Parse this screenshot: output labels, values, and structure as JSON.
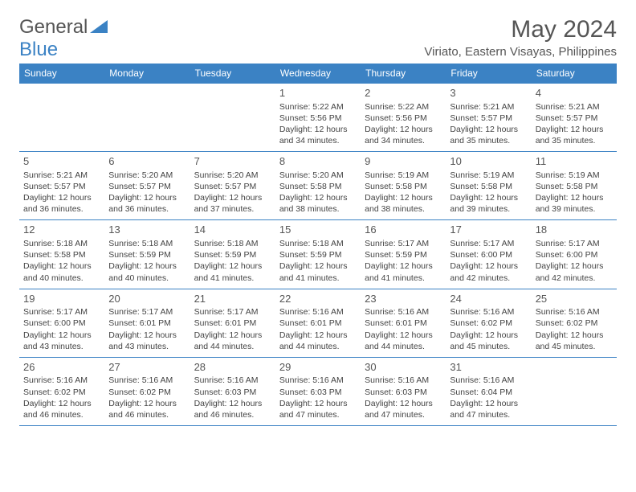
{
  "logo": {
    "part1": "General",
    "part2": "Blue"
  },
  "title": "May 2024",
  "location": "Viriato, Eastern Visayas, Philippines",
  "colors": {
    "header_bg": "#3b82c4",
    "header_text": "#ffffff",
    "body_text": "#444444",
    "border": "#3b82c4",
    "title_text": "#555555"
  },
  "day_names": [
    "Sunday",
    "Monday",
    "Tuesday",
    "Wednesday",
    "Thursday",
    "Friday",
    "Saturday"
  ],
  "weeks": [
    [
      null,
      null,
      null,
      {
        "n": "1",
        "sr": "5:22 AM",
        "ss": "5:56 PM",
        "dl": "12 hours and 34 minutes."
      },
      {
        "n": "2",
        "sr": "5:22 AM",
        "ss": "5:56 PM",
        "dl": "12 hours and 34 minutes."
      },
      {
        "n": "3",
        "sr": "5:21 AM",
        "ss": "5:57 PM",
        "dl": "12 hours and 35 minutes."
      },
      {
        "n": "4",
        "sr": "5:21 AM",
        "ss": "5:57 PM",
        "dl": "12 hours and 35 minutes."
      }
    ],
    [
      {
        "n": "5",
        "sr": "5:21 AM",
        "ss": "5:57 PM",
        "dl": "12 hours and 36 minutes."
      },
      {
        "n": "6",
        "sr": "5:20 AM",
        "ss": "5:57 PM",
        "dl": "12 hours and 36 minutes."
      },
      {
        "n": "7",
        "sr": "5:20 AM",
        "ss": "5:57 PM",
        "dl": "12 hours and 37 minutes."
      },
      {
        "n": "8",
        "sr": "5:20 AM",
        "ss": "5:58 PM",
        "dl": "12 hours and 38 minutes."
      },
      {
        "n": "9",
        "sr": "5:19 AM",
        "ss": "5:58 PM",
        "dl": "12 hours and 38 minutes."
      },
      {
        "n": "10",
        "sr": "5:19 AM",
        "ss": "5:58 PM",
        "dl": "12 hours and 39 minutes."
      },
      {
        "n": "11",
        "sr": "5:19 AM",
        "ss": "5:58 PM",
        "dl": "12 hours and 39 minutes."
      }
    ],
    [
      {
        "n": "12",
        "sr": "5:18 AM",
        "ss": "5:58 PM",
        "dl": "12 hours and 40 minutes."
      },
      {
        "n": "13",
        "sr": "5:18 AM",
        "ss": "5:59 PM",
        "dl": "12 hours and 40 minutes."
      },
      {
        "n": "14",
        "sr": "5:18 AM",
        "ss": "5:59 PM",
        "dl": "12 hours and 41 minutes."
      },
      {
        "n": "15",
        "sr": "5:18 AM",
        "ss": "5:59 PM",
        "dl": "12 hours and 41 minutes."
      },
      {
        "n": "16",
        "sr": "5:17 AM",
        "ss": "5:59 PM",
        "dl": "12 hours and 41 minutes."
      },
      {
        "n": "17",
        "sr": "5:17 AM",
        "ss": "6:00 PM",
        "dl": "12 hours and 42 minutes."
      },
      {
        "n": "18",
        "sr": "5:17 AM",
        "ss": "6:00 PM",
        "dl": "12 hours and 42 minutes."
      }
    ],
    [
      {
        "n": "19",
        "sr": "5:17 AM",
        "ss": "6:00 PM",
        "dl": "12 hours and 43 minutes."
      },
      {
        "n": "20",
        "sr": "5:17 AM",
        "ss": "6:01 PM",
        "dl": "12 hours and 43 minutes."
      },
      {
        "n": "21",
        "sr": "5:17 AM",
        "ss": "6:01 PM",
        "dl": "12 hours and 44 minutes."
      },
      {
        "n": "22",
        "sr": "5:16 AM",
        "ss": "6:01 PM",
        "dl": "12 hours and 44 minutes."
      },
      {
        "n": "23",
        "sr": "5:16 AM",
        "ss": "6:01 PM",
        "dl": "12 hours and 44 minutes."
      },
      {
        "n": "24",
        "sr": "5:16 AM",
        "ss": "6:02 PM",
        "dl": "12 hours and 45 minutes."
      },
      {
        "n": "25",
        "sr": "5:16 AM",
        "ss": "6:02 PM",
        "dl": "12 hours and 45 minutes."
      }
    ],
    [
      {
        "n": "26",
        "sr": "5:16 AM",
        "ss": "6:02 PM",
        "dl": "12 hours and 46 minutes."
      },
      {
        "n": "27",
        "sr": "5:16 AM",
        "ss": "6:02 PM",
        "dl": "12 hours and 46 minutes."
      },
      {
        "n": "28",
        "sr": "5:16 AM",
        "ss": "6:03 PM",
        "dl": "12 hours and 46 minutes."
      },
      {
        "n": "29",
        "sr": "5:16 AM",
        "ss": "6:03 PM",
        "dl": "12 hours and 47 minutes."
      },
      {
        "n": "30",
        "sr": "5:16 AM",
        "ss": "6:03 PM",
        "dl": "12 hours and 47 minutes."
      },
      {
        "n": "31",
        "sr": "5:16 AM",
        "ss": "6:04 PM",
        "dl": "12 hours and 47 minutes."
      },
      null
    ]
  ],
  "labels": {
    "sunrise": "Sunrise: ",
    "sunset": "Sunset: ",
    "daylight": "Daylight: "
  }
}
